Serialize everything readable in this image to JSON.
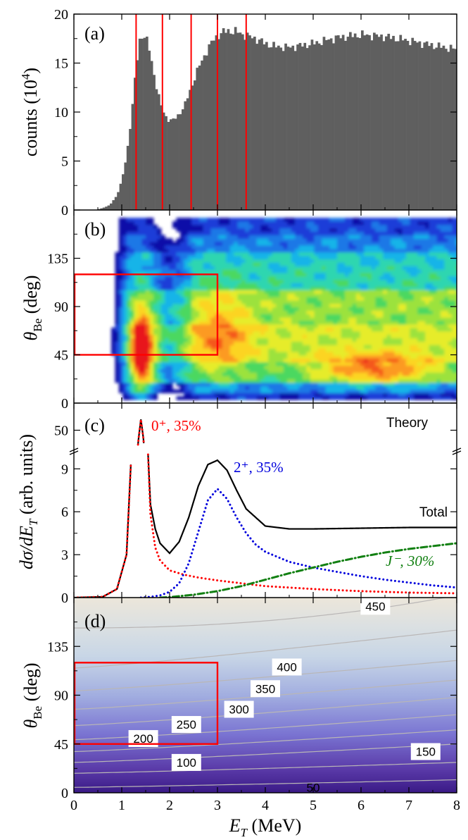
{
  "chart_data": [
    {
      "panel": "(a)",
      "type": "bar",
      "ylabel": "counts",
      "ylabel_unit": "(10",
      "ylabel_exp": "4",
      "ylabel_close": ")",
      "xlim": [
        0,
        8
      ],
      "ylim": [
        0,
        20
      ],
      "yticks": [
        "0",
        "5",
        "10",
        "15",
        "20"
      ],
      "bin_width": 0.05,
      "bin_color": "#5f5f5f",
      "profile_x": [
        0,
        0.45,
        0.6,
        0.75,
        0.9,
        1.0,
        1.1,
        1.2,
        1.3,
        1.38,
        1.45,
        1.55,
        1.65,
        1.75,
        1.85,
        1.95,
        2.05,
        2.15,
        2.3,
        2.45,
        2.6,
        2.75,
        2.9,
        3.05,
        3.2,
        3.4,
        3.6,
        3.8,
        4.0,
        4.2,
        4.5,
        5.0,
        5.5,
        6.0,
        6.5,
        7.0,
        7.5,
        8.0
      ],
      "profile_y": [
        0,
        0,
        0.2,
        0.5,
        1.5,
        3.0,
        5.5,
        9.5,
        14.5,
        17.5,
        18.0,
        17.0,
        14.5,
        12.0,
        10.2,
        9.3,
        9.1,
        9.5,
        10.5,
        12.5,
        14.5,
        16.0,
        17.3,
        18.0,
        18.3,
        18.2,
        17.8,
        17.5,
        17.0,
        16.7,
        16.6,
        17.0,
        17.6,
        17.9,
        17.7,
        17.3,
        16.8,
        16.4
      ],
      "markers_x": [
        1.3,
        1.85,
        2.45,
        3.0,
        3.6
      ],
      "marker_color": "#ff0000"
    },
    {
      "panel": "(b)",
      "type": "heatmap",
      "ylabel": "θ",
      "ylabel_sub": "Be",
      "ylabel_unit": "(deg)",
      "xlim": [
        0,
        8
      ],
      "ylim": [
        0,
        180
      ],
      "yticks": [
        "0",
        "45",
        "90",
        "135"
      ],
      "colormap": [
        "#ffffff",
        "#1010a8",
        "#1c3cd8",
        "#1e78e6",
        "#18b4e8",
        "#2ed6b0",
        "#4cd860",
        "#9ce23c",
        "#e6ec2c",
        "#fcd422",
        "#fc9a20",
        "#f4581c",
        "#e8141c"
      ],
      "selection_box": {
        "x0": 0,
        "x1": 3,
        "y0": 45,
        "y1": 120,
        "color": "#ff0000"
      }
    },
    {
      "panel": "(c)",
      "type": "line",
      "ylabel": "dσ/dE",
      "ylabel_sub": "T",
      "ylabel_unit": "(arb. units)",
      "xlim": [
        0,
        8
      ],
      "ylim_lower": [
        0,
        10
      ],
      "ylim_upper": [
        40,
        60
      ],
      "yticks": [
        "0",
        "3",
        "6",
        "9",
        "50"
      ],
      "theory_label": "Theory",
      "series": [
        {
          "name": "Total",
          "style": "solid",
          "color": "#000000",
          "x": [
            0,
            0.6,
            0.9,
            1.1,
            1.2,
            1.3,
            1.35,
            1.4,
            1.45,
            1.5,
            1.55,
            1.6,
            1.7,
            1.8,
            2.0,
            2.2,
            2.4,
            2.6,
            2.8,
            3.0,
            3.2,
            3.4,
            3.6,
            4.0,
            4.5,
            5.0,
            6.0,
            7.0,
            8.0
          ],
          "y": [
            0,
            0.05,
            0.6,
            3.0,
            10.0,
            30.0,
            45.0,
            56.0,
            46.0,
            30.0,
            10.0,
            6.5,
            4.8,
            3.8,
            3.1,
            3.9,
            5.6,
            7.8,
            9.3,
            9.6,
            8.9,
            7.5,
            6.2,
            5.0,
            4.8,
            4.8,
            4.85,
            4.9,
            4.9
          ]
        },
        {
          "name": "0⁺, 35%",
          "style": "dotted",
          "color": "#ff0000",
          "x": [
            0,
            0.6,
            0.9,
            1.1,
            1.2,
            1.3,
            1.35,
            1.4,
            1.45,
            1.5,
            1.55,
            1.6,
            1.7,
            1.8,
            2.0,
            2.3,
            2.6,
            3.0,
            3.5,
            4.0,
            5.0,
            6.0,
            7.0,
            8.0
          ],
          "y": [
            0,
            0.05,
            0.6,
            3.0,
            10.0,
            30.0,
            45.0,
            56.0,
            46.0,
            30.0,
            10.0,
            5.8,
            3.5,
            2.6,
            1.9,
            1.6,
            1.4,
            1.2,
            1.0,
            0.8,
            0.6,
            0.45,
            0.35,
            0.3
          ]
        },
        {
          "name": "2⁺, 35%",
          "style": "dotted",
          "color": "#0000dd",
          "x": [
            1.4,
            1.6,
            1.8,
            2.0,
            2.2,
            2.4,
            2.6,
            2.8,
            3.0,
            3.2,
            3.4,
            3.6,
            3.8,
            4.0,
            4.5,
            5.0,
            5.5,
            6.0,
            6.5,
            7.0,
            7.5,
            8.0
          ],
          "y": [
            0,
            0.05,
            0.15,
            0.4,
            1.0,
            2.4,
            4.6,
            6.8,
            7.6,
            6.9,
            5.6,
            4.5,
            3.7,
            3.2,
            2.5,
            2.1,
            1.8,
            1.5,
            1.25,
            1.05,
            0.85,
            0.7
          ]
        },
        {
          "name": "J⁻, 30%",
          "style": "dashdot",
          "color": "#128012",
          "x": [
            1.8,
            2.0,
            2.5,
            3.0,
            3.5,
            4.0,
            4.5,
            5.0,
            5.5,
            6.0,
            6.5,
            7.0,
            7.5,
            8.0
          ],
          "y": [
            0,
            0.03,
            0.2,
            0.45,
            0.8,
            1.25,
            1.7,
            2.1,
            2.5,
            2.85,
            3.15,
            3.4,
            3.6,
            3.8
          ]
        }
      ]
    },
    {
      "panel": "(d)",
      "type": "heatmap",
      "ylabel": "θ",
      "ylabel_sub": "Be",
      "ylabel_unit": "(deg)",
      "xlabel": "E",
      "xlabel_sub": "T",
      "xlabel_unit": "(MeV)",
      "xlim": [
        0,
        8
      ],
      "ylim": [
        0,
        180
      ],
      "xticks": [
        "0",
        "1",
        "2",
        "3",
        "4",
        "5",
        "6",
        "7",
        "8"
      ],
      "yticks": [
        "0",
        "45",
        "90",
        "135"
      ],
      "contours": [
        {
          "label": "50",
          "y0": 5,
          "y1": 12,
          "ly": 5,
          "lx": 5.0
        },
        {
          "label": "100",
          "y0": 18,
          "y1": 28,
          "ly": 28,
          "lx": 2.35
        },
        {
          "label": "150",
          "y0": 28,
          "y1": 45,
          "ly": 38,
          "lx": 7.35
        },
        {
          "label": "200",
          "y0": 38,
          "y1": 58,
          "ly": 50,
          "lx": 1.45
        },
        {
          "label": "250",
          "y0": 49,
          "y1": 72,
          "ly": 63,
          "lx": 2.35
        },
        {
          "label": "300",
          "y0": 62,
          "y1": 88,
          "ly": 77,
          "lx": 3.45
        },
        {
          "label": "350",
          "y0": 77,
          "y1": 104,
          "ly": 96,
          "lx": 4.0
        },
        {
          "label": "400",
          "y0": 94,
          "y1": 122,
          "ly": 116,
          "lx": 4.45
        },
        {
          "label": "450",
          "y0": 115,
          "y1": 150,
          "ly": 172,
          "lx": 6.3
        }
      ],
      "selection_box": {
        "x0": 0,
        "x1": 3,
        "y0": 45,
        "y1": 120,
        "color": "#ff0000"
      }
    }
  ]
}
